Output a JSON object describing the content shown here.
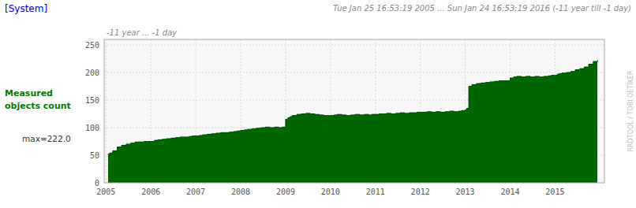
{
  "chart_data": {
    "type": "area",
    "line_style": "step",
    "title": "Tue Jan 25 16:53:19 2005 ...  Sun Jan 24 16:53:19 2016 (-11 year till -1 day)",
    "y_label": [
      "Measured",
      "objects count"
    ],
    "annotations": [
      "[System]",
      "-11 year ... -1 day",
      "max=222.0",
      "RRDTOOL / TOBI OETIKER"
    ],
    "color": "#006600",
    "grid": true,
    "xlim": [
      2004.96,
      2016.1
    ],
    "ylim": [
      0,
      260
    ],
    "xticks": [
      2005,
      2006,
      2007,
      2008,
      2009,
      2010,
      2011,
      2012,
      2013,
      2014,
      2015
    ],
    "yticks": [
      0,
      50,
      100,
      150,
      200,
      250
    ],
    "x": [
      2005.04,
      2005.08,
      2005.15,
      2005.25,
      2005.35,
      2005.45,
      2005.55,
      2005.65,
      2005.75,
      2005.85,
      2005.92,
      2006.0,
      2006.08,
      2006.15,
      2006.25,
      2006.35,
      2006.45,
      2006.55,
      2006.65,
      2006.75,
      2006.85,
      2006.92,
      2007.0,
      2007.08,
      2007.15,
      2007.25,
      2007.35,
      2007.45,
      2007.55,
      2007.65,
      2007.75,
      2007.85,
      2007.92,
      2008.0,
      2008.08,
      2008.15,
      2008.25,
      2008.35,
      2008.45,
      2008.55,
      2008.65,
      2008.75,
      2008.85,
      2008.92,
      2009.0,
      2009.05,
      2009.1,
      2009.15,
      2009.25,
      2009.35,
      2009.45,
      2009.55,
      2009.65,
      2009.75,
      2009.85,
      2009.92,
      2010.0,
      2010.08,
      2010.15,
      2010.25,
      2010.35,
      2010.45,
      2010.55,
      2010.65,
      2010.75,
      2010.85,
      2010.92,
      2011.0,
      2011.08,
      2011.15,
      2011.25,
      2011.35,
      2011.45,
      2011.55,
      2011.65,
      2011.75,
      2011.85,
      2011.92,
      2012.0,
      2012.08,
      2012.15,
      2012.25,
      2012.35,
      2012.45,
      2012.55,
      2012.65,
      2012.75,
      2012.85,
      2012.92,
      2013.0,
      2013.03,
      2013.08,
      2013.15,
      2013.25,
      2013.35,
      2013.45,
      2013.55,
      2013.65,
      2013.75,
      2013.85,
      2013.92,
      2014.0,
      2014.08,
      2014.15,
      2014.25,
      2014.35,
      2014.45,
      2014.55,
      2014.65,
      2014.75,
      2014.85,
      2014.92,
      2015.0,
      2015.05,
      2015.1,
      2015.15,
      2015.25,
      2015.35,
      2015.45,
      2015.55,
      2015.65,
      2015.75,
      2015.85,
      2015.95
    ],
    "values": [
      52,
      54,
      58,
      65,
      68,
      70,
      72,
      74,
      74,
      75,
      75,
      75,
      77,
      78,
      79,
      80,
      81,
      82,
      83,
      83,
      84,
      85,
      85,
      86,
      87,
      88,
      89,
      90,
      91,
      91,
      92,
      93,
      94,
      95,
      96,
      97,
      98,
      99,
      100,
      101,
      100,
      101,
      100,
      101,
      115,
      118,
      120,
      122,
      124,
      125,
      126,
      125,
      124,
      123,
      122,
      122,
      122,
      123,
      124,
      123,
      122,
      123,
      124,
      123,
      124,
      123,
      124,
      124,
      125,
      125,
      126,
      125,
      126,
      127,
      126,
      127,
      127,
      128,
      128,
      128,
      129,
      128,
      129,
      128,
      129,
      130,
      129,
      130,
      131,
      132,
      135,
      175,
      178,
      180,
      181,
      182,
      183,
      184,
      185,
      185,
      185,
      190,
      192,
      193,
      192,
      193,
      192,
      193,
      192,
      193,
      194,
      195,
      195,
      197,
      198,
      199,
      200,
      202,
      205,
      207,
      210,
      215,
      220,
      222
    ]
  }
}
